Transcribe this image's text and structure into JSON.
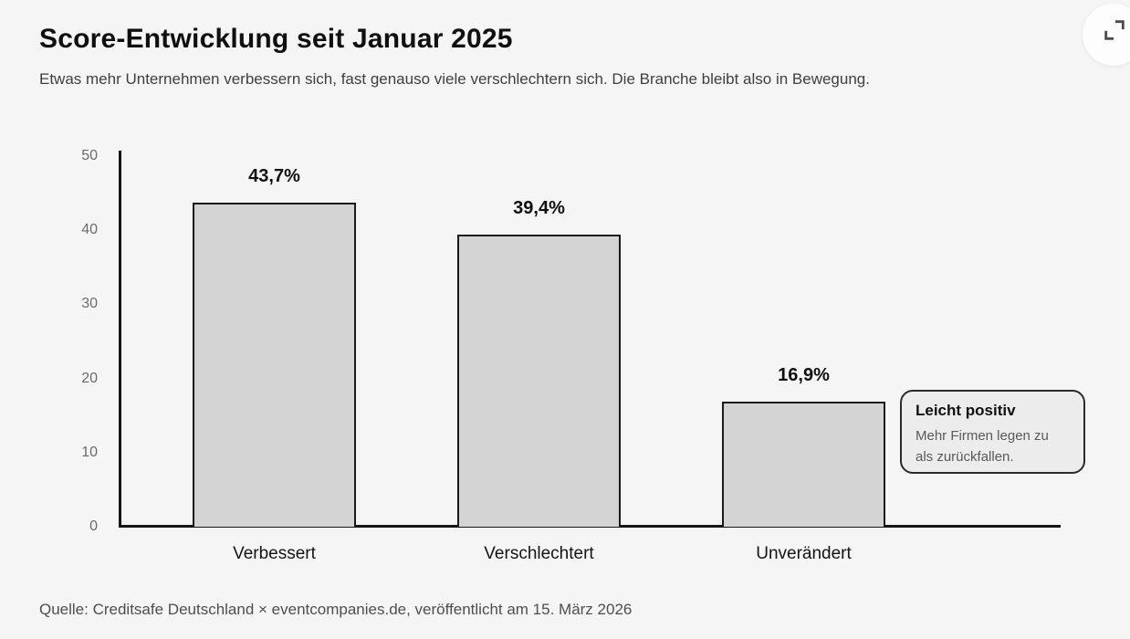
{
  "page": {
    "title": "Score-Entwicklung seit Januar 2025",
    "subtitle": "Etwas mehr Unternehmen verbessern sich, fast genauso viele verschlechtern sich. Die Branche bleibt also in Bewegung.",
    "source": "Quelle: Creditsafe Deutschland × eventcompanies.de, veröffentlicht am 15. März 2026"
  },
  "controls": {
    "fullscreen_icon": "fullscreen-expand-icon"
  },
  "annotation": {
    "title": "Leicht positiv",
    "body": "Mehr Firmen legen zu als zurückfallen."
  },
  "colors": {
    "background": "#f5f5f5",
    "bar_fill": "#d4d4d4",
    "bar_border": "#1a1a1a",
    "annotation_bg": "#ececec",
    "annotation_border": "#2b2b2b",
    "text_primary": "#101010",
    "text_secondary": "#3f3f3f",
    "axis_tick_text": "#6b6b6b",
    "source_text": "#4e4e4e"
  },
  "chart_data": {
    "type": "bar",
    "title": "Score-Entwicklung seit Januar 2025",
    "subtitle": "Etwas mehr Unternehmen verbessern sich, fast genauso viele verschlechtern sich. Die Branche bleibt also in Bewegung.",
    "categories": [
      "Verbessert",
      "Verschlechtert",
      "Unverändert"
    ],
    "values": [
      43.7,
      39.4,
      16.9
    ],
    "value_labels": [
      "43,7%",
      "39,4%",
      "16,9%"
    ],
    "xlabel": "",
    "ylabel": "",
    "ylim": [
      0,
      50
    ],
    "yticks": [
      0,
      10,
      20,
      30,
      40,
      50
    ],
    "grid": false,
    "legend": "none",
    "annotation": "Leicht positiv — Mehr Firmen legen zu als zurückfallen.",
    "source": "Quelle: Creditsafe Deutschland × eventcompanies.de, veröffentlicht am 15. März 2026"
  }
}
